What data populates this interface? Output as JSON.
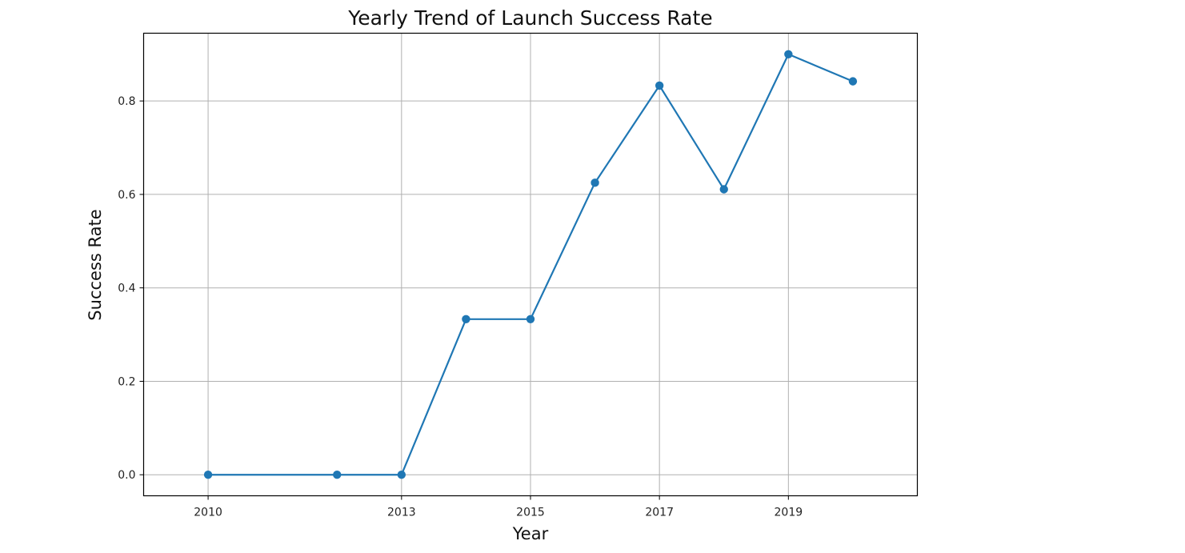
{
  "chart_data": {
    "type": "line",
    "title": "Yearly Trend of Launch Success Rate",
    "xlabel": "Year",
    "ylabel": "Success Rate",
    "x": [
      2010,
      2012,
      2013,
      2014,
      2015,
      2016,
      2017,
      2018,
      2019,
      2020
    ],
    "series": [
      {
        "values": [
          0.0,
          0.0,
          0.0,
          0.333,
          0.333,
          0.625,
          0.833,
          0.611,
          0.9,
          0.842
        ]
      }
    ],
    "x_ticks": [
      "2010",
      "2013",
      "2015",
      "2017",
      "2019"
    ],
    "y_ticks": [
      "0.0",
      "0.2",
      "0.4",
      "0.6",
      "0.8"
    ],
    "xlim": [
      2009,
      2021
    ],
    "ylim": [
      -0.045,
      0.945
    ],
    "grid": true,
    "colors": {
      "line": "#1f77b4",
      "marker": "#1f77b4",
      "grid": "#b0b0b0",
      "frame": "#000000"
    }
  }
}
